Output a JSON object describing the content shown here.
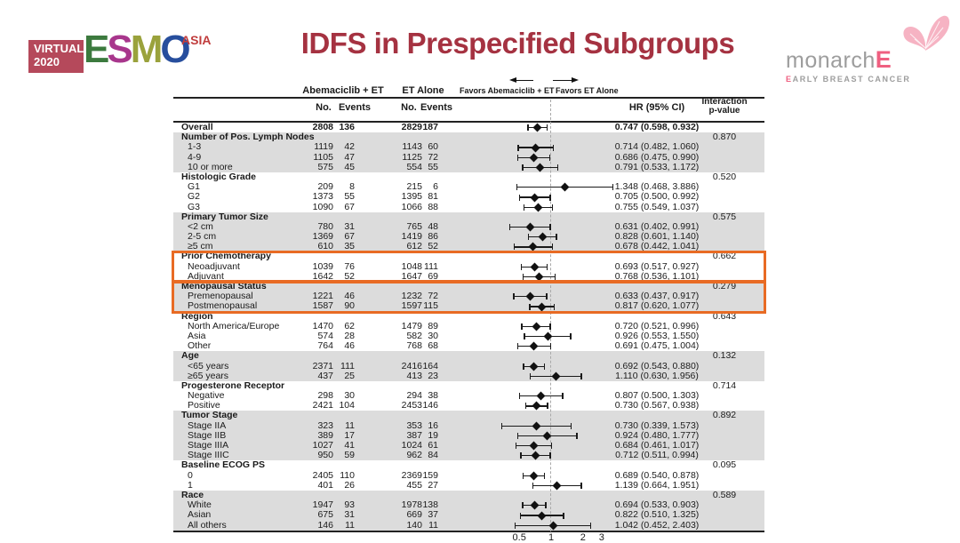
{
  "title": "IDFS in Prespecified Subgroups",
  "colors": {
    "title": "#a53241",
    "highlight": "#e86b24",
    "band": "#dcdcdc",
    "esmo_box": "#b5495b",
    "esmo_asia": "#c03c3c",
    "monarch_gray": "#9d9d9d",
    "monarch_pink": "#ef5f80",
    "butterfly": "#f6b3c3"
  },
  "logos": {
    "esmo": {
      "virtual": "VIRTUAL",
      "year": "2020",
      "region": "ASIA",
      "letters": [
        {
          "ch": "E",
          "color": "#3c7a3e"
        },
        {
          "ch": "S",
          "color": "#a8368c"
        },
        {
          "ch": "M",
          "color": "#9aa23c"
        },
        {
          "ch": "O",
          "color": "#274e9d"
        }
      ]
    },
    "monarche": {
      "name": "monarch",
      "e": "E",
      "subtitle_first": "E",
      "subtitle_rest": "ARLY BREAST CANCER"
    }
  },
  "table": {
    "group_headers": [
      "Abemaciclib + ET",
      "ET Alone"
    ],
    "favors_left": "Favors Abemaciclib + ET",
    "favors_right": "Favors ET Alone",
    "col_headers": {
      "no1": "No.",
      "events1": "Events",
      "no2": "No.",
      "events2": "Events",
      "hr": "HR (95% CI)",
      "interaction_line1": "Interaction",
      "interaction_line2": "p-value"
    }
  },
  "chart_data": {
    "type": "scatter",
    "subtype": "forest-plot",
    "title": "IDFS in Prespecified Subgroups",
    "x_scale": "log",
    "x_ticks": [
      "0.5",
      "1",
      "2",
      "3"
    ],
    "reference_line": 1,
    "overall": {
      "label": "Overall",
      "abe_n": 2808,
      "abe_e": 136,
      "et_n": 2829,
      "et_e": 187,
      "hr": 0.747,
      "lo": 0.598,
      "hi": 0.932,
      "hr_text": "0.747 (0.598, 0.932)"
    },
    "sections": [
      {
        "label": "Number of Pos. Lymph Nodes",
        "p_value": "0.870",
        "shaded": true,
        "highlighted": false,
        "rows": [
          {
            "label": "1-3",
            "abe_n": 1119,
            "abe_e": 42,
            "et_n": 1143,
            "et_e": 60,
            "hr": 0.714,
            "lo": 0.482,
            "hi": 1.06,
            "hr_text": "0.714 (0.482, 1.060)"
          },
          {
            "label": "4-9",
            "abe_n": 1105,
            "abe_e": 47,
            "et_n": 1125,
            "et_e": 72,
            "hr": 0.686,
            "lo": 0.475,
            "hi": 0.99,
            "hr_text": "0.686 (0.475, 0.990)"
          },
          {
            "label": "10 or more",
            "abe_n": 575,
            "abe_e": 45,
            "et_n": 554,
            "et_e": 55,
            "hr": 0.791,
            "lo": 0.533,
            "hi": 1.172,
            "hr_text": "0.791 (0.533, 1.172)"
          }
        ]
      },
      {
        "label": "Histologic Grade",
        "p_value": "0.520",
        "shaded": false,
        "highlighted": false,
        "rows": [
          {
            "label": "G1",
            "abe_n": 209,
            "abe_e": 8,
            "et_n": 215,
            "et_e": 6,
            "hr": 1.348,
            "lo": 0.468,
            "hi": 3.886,
            "hr_text": "1.348 (0.468, 3.886)"
          },
          {
            "label": "G2",
            "abe_n": 1373,
            "abe_e": 55,
            "et_n": 1395,
            "et_e": 81,
            "hr": 0.705,
            "lo": 0.5,
            "hi": 0.992,
            "hr_text": "0.705 (0.500, 0.992)"
          },
          {
            "label": "G3",
            "abe_n": 1090,
            "abe_e": 67,
            "et_n": 1066,
            "et_e": 88,
            "hr": 0.755,
            "lo": 0.549,
            "hi": 1.037,
            "hr_text": "0.755 (0.549, 1.037)"
          }
        ]
      },
      {
        "label": "Primary Tumor Size",
        "p_value": "0.575",
        "shaded": true,
        "highlighted": false,
        "rows": [
          {
            "label": "<2 cm",
            "abe_n": 780,
            "abe_e": 31,
            "et_n": 765,
            "et_e": 48,
            "hr": 0.631,
            "lo": 0.402,
            "hi": 0.991,
            "hr_text": "0.631 (0.402, 0.991)"
          },
          {
            "label": "2-5 cm",
            "abe_n": 1369,
            "abe_e": 67,
            "et_n": 1419,
            "et_e": 86,
            "hr": 0.828,
            "lo": 0.601,
            "hi": 1.14,
            "hr_text": "0.828 (0.601, 1.140)"
          },
          {
            "label": "≥5 cm",
            "abe_n": 610,
            "abe_e": 35,
            "et_n": 612,
            "et_e": 52,
            "hr": 0.678,
            "lo": 0.442,
            "hi": 1.041,
            "hr_text": "0.678 (0.442, 1.041)"
          }
        ]
      },
      {
        "label": "Prior Chemotherapy",
        "p_value": "0.662",
        "shaded": false,
        "highlighted": true,
        "rows": [
          {
            "label": "Neoadjuvant",
            "abe_n": 1039,
            "abe_e": 76,
            "et_n": 1048,
            "et_e": 111,
            "hr": 0.693,
            "lo": 0.517,
            "hi": 0.927,
            "hr_text": "0.693 (0.517, 0.927)"
          },
          {
            "label": "Adjuvant",
            "abe_n": 1642,
            "abe_e": 52,
            "et_n": 1647,
            "et_e": 69,
            "hr": 0.768,
            "lo": 0.536,
            "hi": 1.101,
            "hr_text": "0.768 (0.536, 1.101)"
          }
        ]
      },
      {
        "label": "Menopausal Status",
        "p_value": "0.279",
        "shaded": true,
        "highlighted": true,
        "rows": [
          {
            "label": "Premenopausal",
            "abe_n": 1221,
            "abe_e": 46,
            "et_n": 1232,
            "et_e": 72,
            "hr": 0.633,
            "lo": 0.437,
            "hi": 0.917,
            "hr_text": "0.633 (0.437, 0.917)"
          },
          {
            "label": "Postmenopausal",
            "abe_n": 1587,
            "abe_e": 90,
            "et_n": 1597,
            "et_e": 115,
            "hr": 0.817,
            "lo": 0.62,
            "hi": 1.077,
            "hr_text": "0.817 (0.620, 1.077)"
          }
        ]
      },
      {
        "label": "Region",
        "p_value": "0.643",
        "shaded": false,
        "highlighted": false,
        "rows": [
          {
            "label": "North America/Europe",
            "abe_n": 1470,
            "abe_e": 62,
            "et_n": 1479,
            "et_e": 89,
            "hr": 0.72,
            "lo": 0.521,
            "hi": 0.996,
            "hr_text": "0.720 (0.521, 0.996)"
          },
          {
            "label": "Asia",
            "abe_n": 574,
            "abe_e": 28,
            "et_n": 582,
            "et_e": 30,
            "hr": 0.926,
            "lo": 0.553,
            "hi": 1.55,
            "hr_text": "0.926 (0.553, 1.550)"
          },
          {
            "label": "Other",
            "abe_n": 764,
            "abe_e": 46,
            "et_n": 768,
            "et_e": 68,
            "hr": 0.691,
            "lo": 0.475,
            "hi": 1.004,
            "hr_text": "0.691 (0.475, 1.004)"
          }
        ]
      },
      {
        "label": "Age",
        "p_value": "0.132",
        "shaded": true,
        "highlighted": false,
        "rows": [
          {
            "label": "<65 years",
            "abe_n": 2371,
            "abe_e": 111,
            "et_n": 2416,
            "et_e": 164,
            "hr": 0.692,
            "lo": 0.543,
            "hi": 0.88,
            "hr_text": "0.692 (0.543, 0.880)"
          },
          {
            "label": "≥65 years",
            "abe_n": 437,
            "abe_e": 25,
            "et_n": 413,
            "et_e": 23,
            "hr": 1.11,
            "lo": 0.63,
            "hi": 1.956,
            "hr_text": "1.110 (0.630, 1.956)"
          }
        ]
      },
      {
        "label": "Progesterone Receptor",
        "p_value": "0.714",
        "shaded": false,
        "highlighted": false,
        "rows": [
          {
            "label": "Negative",
            "abe_n": 298,
            "abe_e": 30,
            "et_n": 294,
            "et_e": 38,
            "hr": 0.807,
            "lo": 0.5,
            "hi": 1.303,
            "hr_text": "0.807 (0.500, 1.303)"
          },
          {
            "label": "Positive",
            "abe_n": 2421,
            "abe_e": 104,
            "et_n": 2453,
            "et_e": 146,
            "hr": 0.73,
            "lo": 0.567,
            "hi": 0.938,
            "hr_text": "0.730 (0.567, 0.938)"
          }
        ]
      },
      {
        "label": "Tumor Stage",
        "p_value": "0.892",
        "shaded": true,
        "highlighted": false,
        "rows": [
          {
            "label": "Stage IIA",
            "abe_n": 323,
            "abe_e": 11,
            "et_n": 353,
            "et_e": 16,
            "hr": 0.73,
            "lo": 0.339,
            "hi": 1.573,
            "hr_text": "0.730 (0.339, 1.573)"
          },
          {
            "label": "Stage IIB",
            "abe_n": 389,
            "abe_e": 17,
            "et_n": 387,
            "et_e": 19,
            "hr": 0.924,
            "lo": 0.48,
            "hi": 1.777,
            "hr_text": "0.924 (0.480, 1.777)"
          },
          {
            "label": "Stage IIIA",
            "abe_n": 1027,
            "abe_e": 41,
            "et_n": 1024,
            "et_e": 61,
            "hr": 0.684,
            "lo": 0.461,
            "hi": 1.017,
            "hr_text": "0.684 (0.461, 1.017)"
          },
          {
            "label": "Stage IIIC",
            "abe_n": 950,
            "abe_e": 59,
            "et_n": 962,
            "et_e": 84,
            "hr": 0.712,
            "lo": 0.511,
            "hi": 0.994,
            "hr_text": "0.712 (0.511, 0.994)"
          }
        ]
      },
      {
        "label": "Baseline ECOG PS",
        "p_value": "0.095",
        "shaded": false,
        "highlighted": false,
        "rows": [
          {
            "label": "0",
            "abe_n": 2405,
            "abe_e": 110,
            "et_n": 2369,
            "et_e": 159,
            "hr": 0.689,
            "lo": 0.54,
            "hi": 0.878,
            "hr_text": "0.689 (0.540, 0.878)"
          },
          {
            "label": "1",
            "abe_n": 401,
            "abe_e": 26,
            "et_n": 455,
            "et_e": 27,
            "hr": 1.139,
            "lo": 0.664,
            "hi": 1.951,
            "hr_text": "1.139 (0.664, 1.951)"
          }
        ]
      },
      {
        "label": "Race",
        "p_value": "0.589",
        "shaded": true,
        "highlighted": false,
        "rows": [
          {
            "label": "White",
            "abe_n": 1947,
            "abe_e": 93,
            "et_n": 1978,
            "et_e": 138,
            "hr": 0.694,
            "lo": 0.533,
            "hi": 0.903,
            "hr_text": "0.694 (0.533, 0.903)"
          },
          {
            "label": "Asian",
            "abe_n": 675,
            "abe_e": 31,
            "et_n": 669,
            "et_e": 37,
            "hr": 0.822,
            "lo": 0.51,
            "hi": 1.325,
            "hr_text": "0.822 (0.510, 1.325)"
          },
          {
            "label": "All others",
            "abe_n": 146,
            "abe_e": 11,
            "et_n": 140,
            "et_e": 11,
            "hr": 1.042,
            "lo": 0.452,
            "hi": 2.403,
            "hr_text": "1.042 (0.452, 2.403)"
          }
        ]
      }
    ]
  }
}
